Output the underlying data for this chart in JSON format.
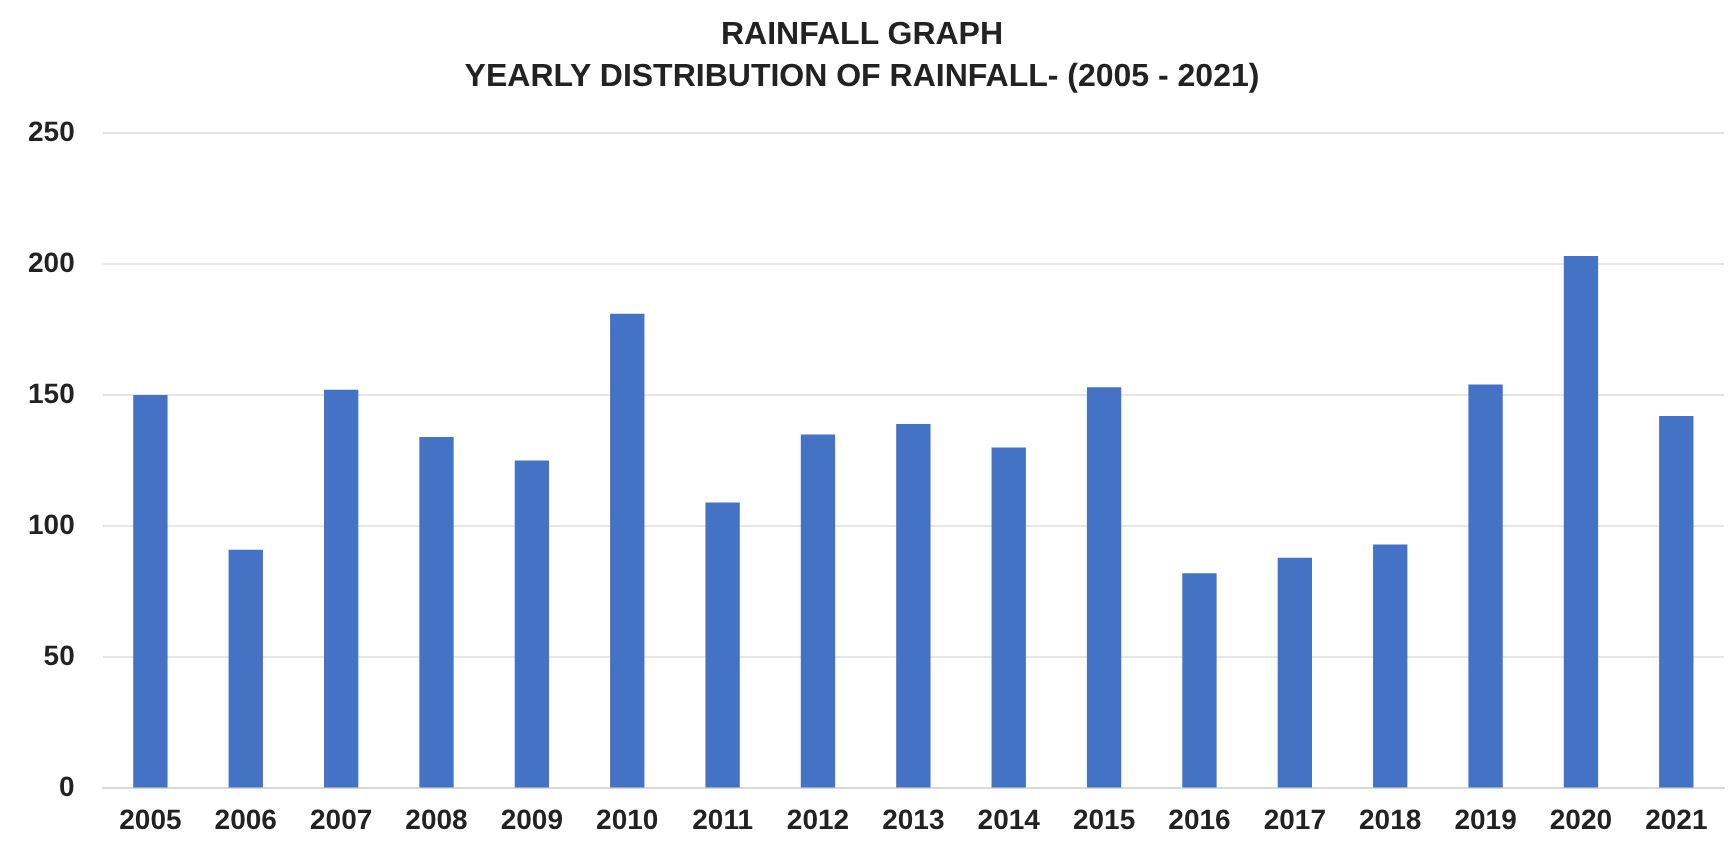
{
  "chart_data": {
    "type": "bar",
    "title": "RAINFALL GRAPH",
    "subtitle": "YEARLY DISTRIBUTION OF RAINFALL- (2005 - 2021)",
    "categories": [
      "2005",
      "2006",
      "2007",
      "2008",
      "2009",
      "2010",
      "2011",
      "2012",
      "2013",
      "2014",
      "2015",
      "2016",
      "2017",
      "2018",
      "2019",
      "2020",
      "2021"
    ],
    "values": [
      150,
      91,
      152,
      134,
      125,
      181,
      109,
      135,
      139,
      130,
      153,
      82,
      88,
      93,
      154,
      203,
      142
    ],
    "color": "#4472c4",
    "ylim": [
      0,
      250
    ],
    "yticks": [
      0,
      50,
      100,
      150,
      200,
      250
    ],
    "grid": "y"
  }
}
